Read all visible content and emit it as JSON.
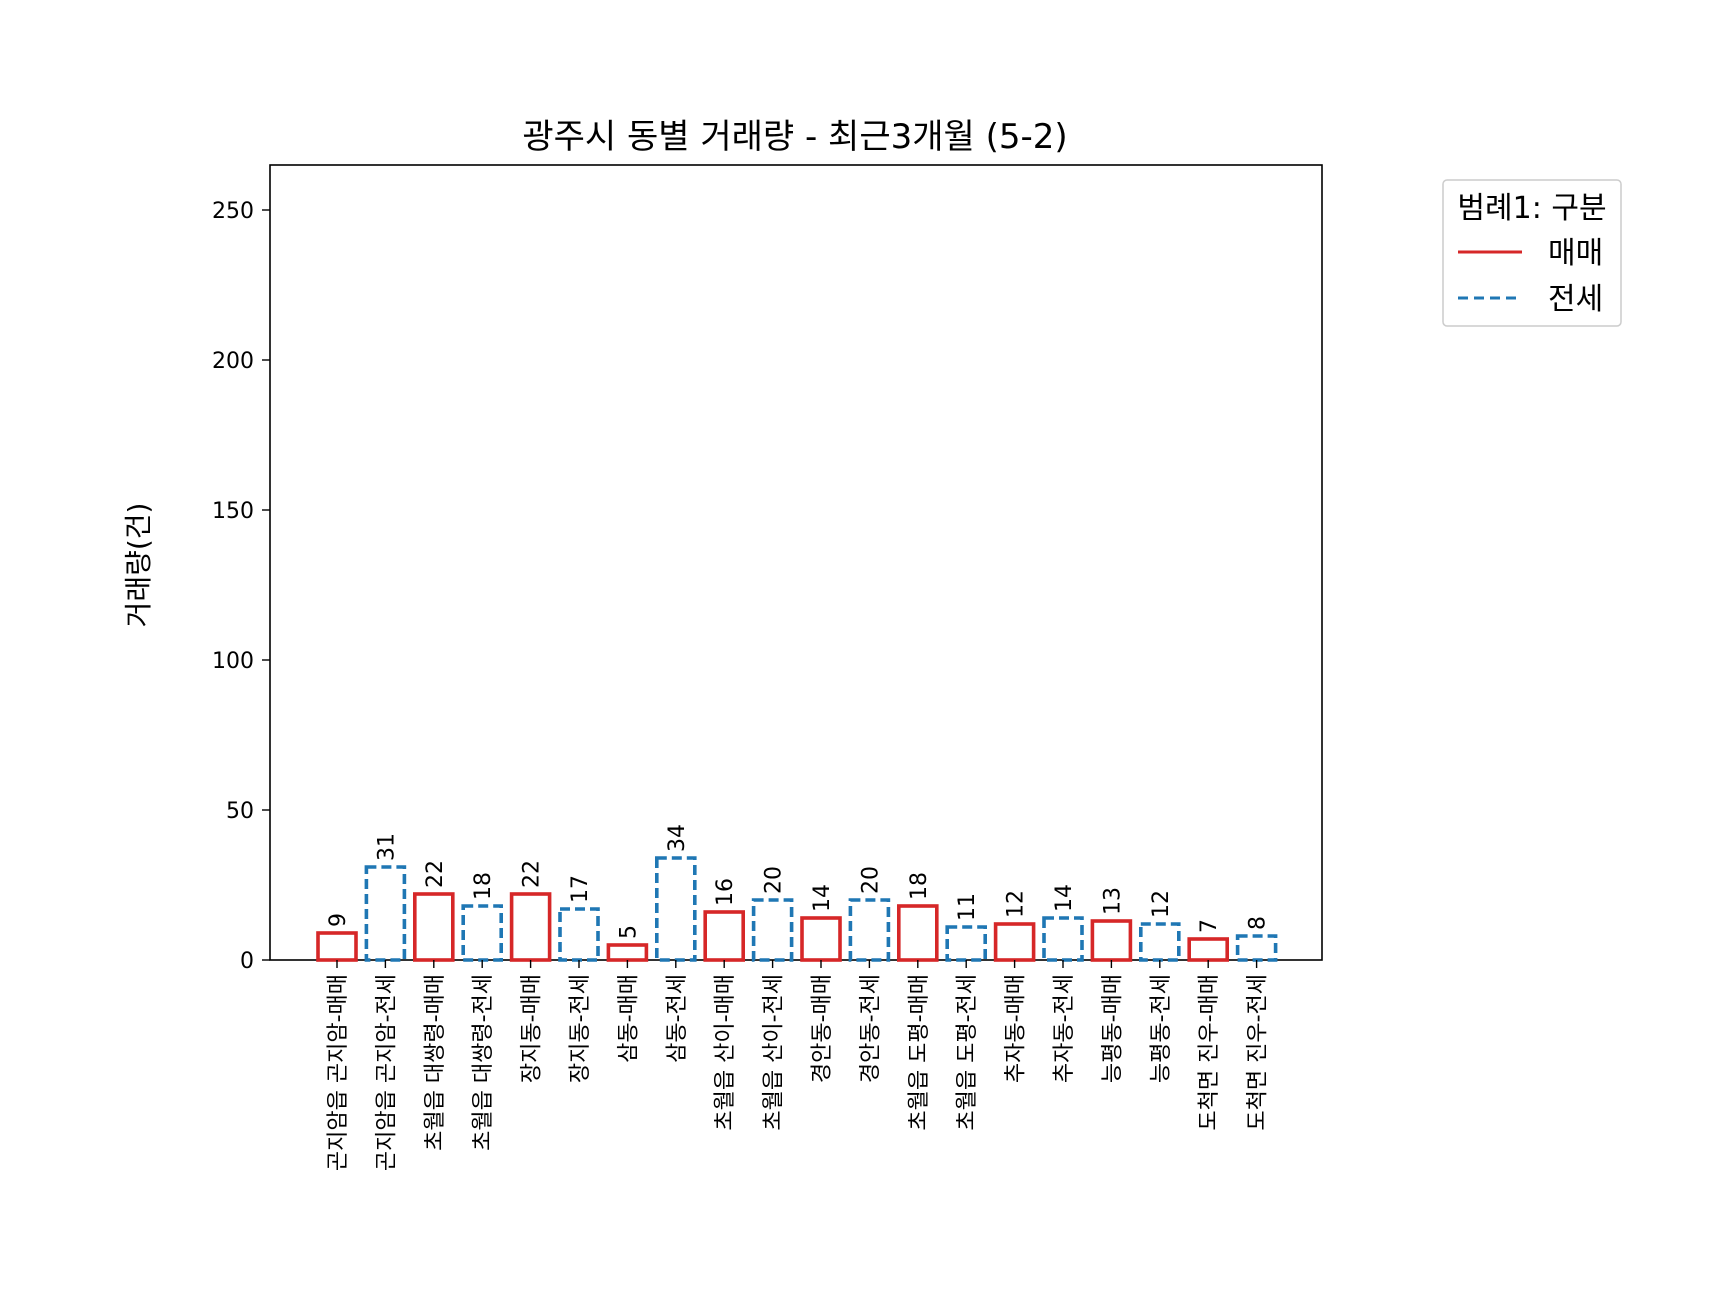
{
  "chart_data": {
    "type": "bar",
    "title": "광주시 동별 거래량 - 최근3개월 (5-2)",
    "xlabel": "",
    "ylabel": "거래량(건)",
    "ylim": [
      0,
      265
    ],
    "yticks": [
      0,
      50,
      100,
      150,
      200,
      250
    ],
    "grid": false,
    "legend": {
      "title": "범례1: 구분",
      "placement": "outside-top-right",
      "entries": [
        {
          "label": "매매",
          "color": "#d62728",
          "style": "solid"
        },
        {
          "label": "전세",
          "color": "#1f77b4",
          "style": "dashed"
        }
      ]
    },
    "categories": [
      "곤지암읍 곤지암-매매",
      "곤지암읍 곤지암-전세",
      "초월읍 대쌍령-매매",
      "초월읍 대쌍령-전세",
      "장지동-매매",
      "장지동-전세",
      "삼동-매매",
      "삼동-전세",
      "초월읍 산이-매매",
      "초월읍 산이-전세",
      "경안동-매매",
      "경안동-전세",
      "초월읍 도평-매매",
      "초월읍 도평-전세",
      "추자동-매매",
      "추자동-전세",
      "능평동-매매",
      "능평동-전세",
      "도척면 진우-매매",
      "도척면 진우-전세"
    ],
    "values": [
      9,
      31,
      22,
      18,
      22,
      17,
      5,
      34,
      16,
      20,
      14,
      20,
      18,
      11,
      12,
      14,
      13,
      12,
      7,
      8
    ],
    "value_labels": [
      "9",
      "31",
      "22",
      "18",
      "22",
      "17",
      "5",
      "34",
      "16",
      "20",
      "14",
      "20",
      "18",
      "11",
      "12",
      "14",
      "13",
      "12",
      "7",
      "8"
    ],
    "series_type": [
      "매매",
      "전세",
      "매매",
      "전세",
      "매매",
      "전세",
      "매매",
      "전세",
      "매매",
      "전세",
      "매매",
      "전세",
      "매매",
      "전세",
      "매매",
      "전세",
      "매매",
      "전세",
      "매매",
      "전세"
    ],
    "colors": {
      "매매": "#d62728",
      "전세": "#1f77b4"
    }
  }
}
